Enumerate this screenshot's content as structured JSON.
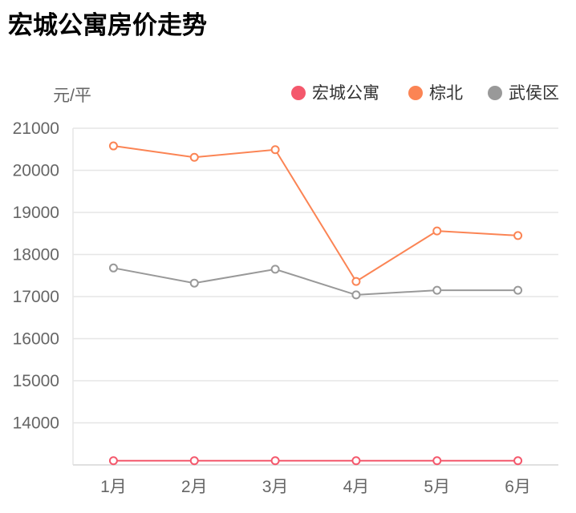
{
  "chart_data": {
    "type": "line",
    "title": "宏城公寓房价走势",
    "ylabel": "元/平",
    "xlabel": "",
    "categories": [
      "1月",
      "2月",
      "3月",
      "4月",
      "5月",
      "6月"
    ],
    "ylim": [
      13000,
      21000
    ],
    "yticks": [
      14000,
      15000,
      16000,
      17000,
      18000,
      19000,
      20000,
      21000
    ],
    "grid": true,
    "legend_position": "top-right",
    "series": [
      {
        "name": "宏城公寓",
        "color": "#f4586c",
        "values": [
          13100,
          13100,
          13100,
          13100,
          13100,
          13100
        ]
      },
      {
        "name": "棕北",
        "color": "#fb8454",
        "values": [
          20580,
          20310,
          20490,
          17360,
          18560,
          18450
        ]
      },
      {
        "name": "武侯区",
        "color": "#999999",
        "values": [
          17680,
          17320,
          17650,
          17040,
          17150,
          17150
        ]
      }
    ]
  }
}
